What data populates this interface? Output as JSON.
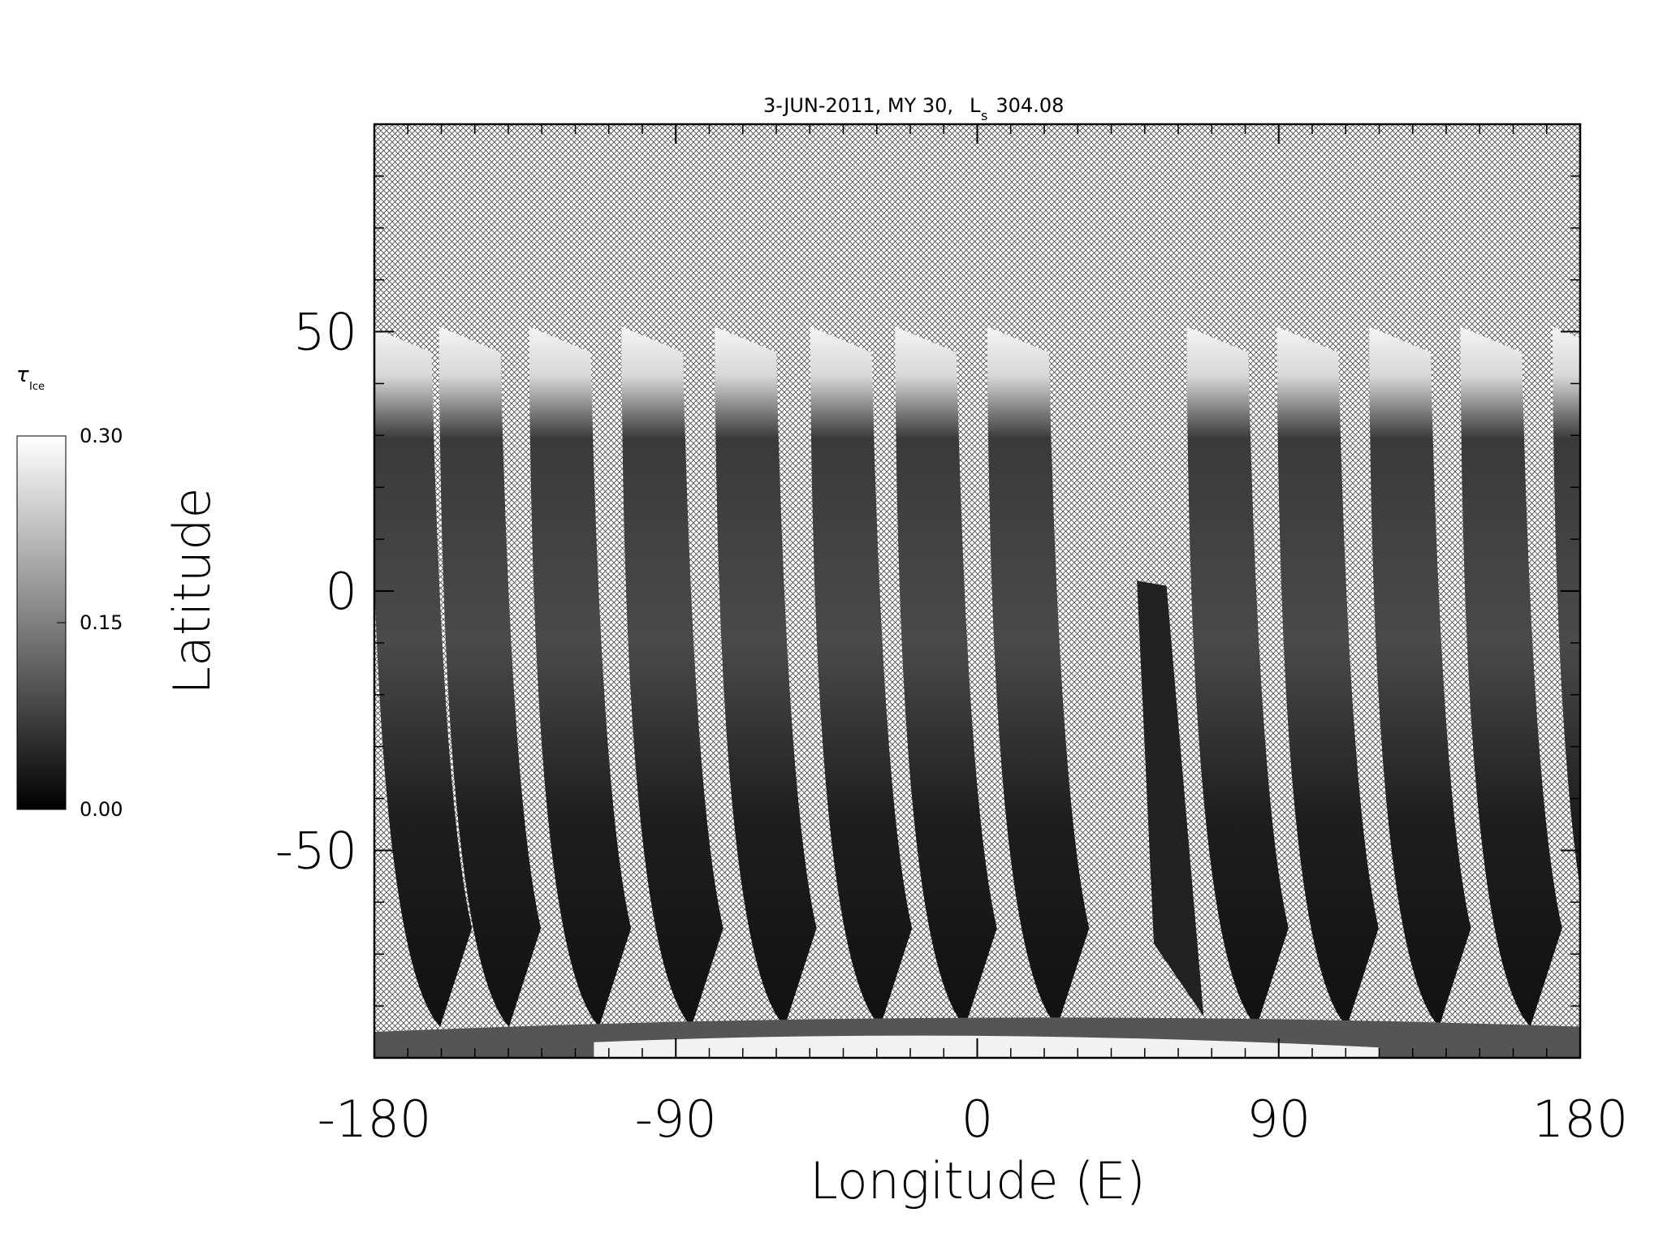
{
  "chart_data": {
    "type": "map",
    "title": "3-JUN-2011, MY 30,",
    "title_symbol": "L",
    "title_subscript": "s",
    "title_value": "304.08",
    "x_label": "Longitude (E)",
    "y_label": "Latitude",
    "xlim": [
      -180,
      180
    ],
    "xticks": [
      -180,
      -90,
      0,
      90,
      180
    ],
    "xminorticks": [
      -170,
      -160,
      -150,
      -140,
      -130,
      -120,
      -110,
      -100,
      -80,
      -70,
      -60,
      -50,
      -40,
      -30,
      -20,
      -10,
      10,
      20,
      30,
      40,
      50,
      60,
      70,
      80,
      100,
      110,
      120,
      130,
      140,
      150,
      160,
      170
    ],
    "ylim": [
      -90,
      90
    ],
    "yticks": [
      -50,
      0,
      50
    ],
    "yminorticks": [
      -80,
      -70,
      -60,
      -40,
      -30,
      -20,
      -10,
      10,
      20,
      30,
      40,
      60,
      70,
      80
    ],
    "colorbar": {
      "symbol": "τ",
      "subscript": "Ice",
      "lim": [
        0,
        0.3
      ],
      "ticks": [
        {
          "value": 0,
          "label": "0.00"
        },
        {
          "value": 0.15,
          "label": "0.15"
        },
        {
          "value": 0.3,
          "label": "0.30"
        }
      ]
    }
  }
}
